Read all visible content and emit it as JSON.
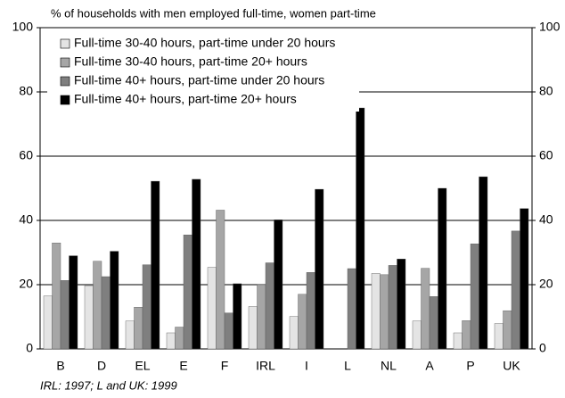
{
  "chart_data": {
    "type": "bar",
    "title": "% of households with men employed full-time, women part-time",
    "footnote": "IRL: 1997; L and UK: 1999",
    "categories": [
      "B",
      "D",
      "EL",
      "E",
      "F",
      "IRL",
      "I",
      "L",
      "NL",
      "A",
      "P",
      "UK"
    ],
    "series": [
      {
        "name": "Full-time 30-40 hours, part-time under 20 hours",
        "color": "#e4e4e4",
        "values": [
          16.5,
          19.7,
          8.7,
          5,
          25.4,
          13.2,
          10.1,
          null,
          23.5,
          8.7,
          5,
          7.9
        ]
      },
      {
        "name": "Full-time 30-40 hours, part-time 20+ hours",
        "color": "#a6a6a6",
        "values": [
          33,
          27.3,
          13,
          6.8,
          43.2,
          20,
          17,
          null,
          23.1,
          25.1,
          8.8,
          11.9
        ]
      },
      {
        "name": "Full-time 40+ hours, part-time under 20 hours",
        "color": "#7f7f7f",
        "values": [
          21.3,
          22.5,
          26.2,
          35.5,
          11.2,
          26.8,
          23.8,
          25,
          26,
          16.3,
          32.7,
          36.7
        ]
      },
      {
        "name": "Full-time 40+ hours, part-time 20+ hours",
        "color": "#000000",
        "values": [
          29,
          30.4,
          52.2,
          52.8,
          20.3,
          40.2,
          49.7,
          75,
          28,
          50,
          53.6,
          43.7
        ]
      }
    ],
    "ylim": [
      0,
      100
    ],
    "yticks": [
      0,
      20,
      40,
      60,
      80,
      100
    ],
    "y2lim": [
      0,
      100
    ],
    "y2ticks": [
      0,
      20,
      40,
      60,
      80,
      100
    ],
    "grid": true,
    "legend": "upper left"
  }
}
